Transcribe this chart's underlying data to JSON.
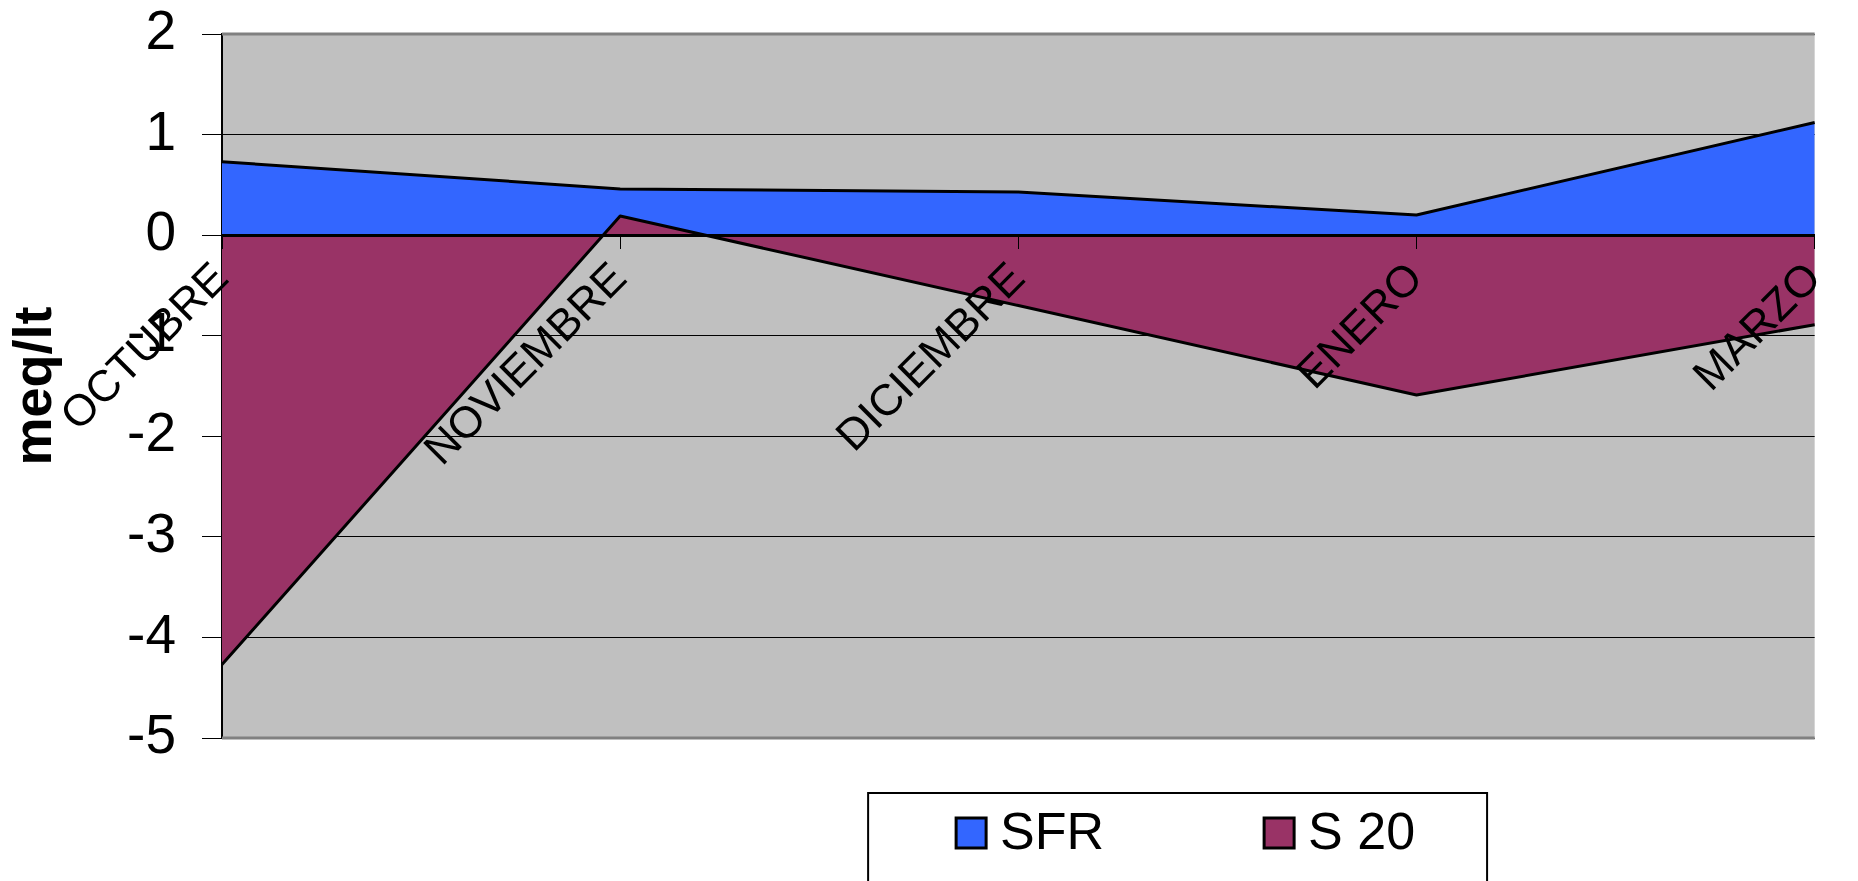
{
  "chart_data": {
    "type": "area",
    "ylabel": "meq/lt",
    "categories": [
      "OCTUBRE",
      "NOVIEMBRE",
      "DICIEMBRE",
      "ENERO",
      "MARZO"
    ],
    "series": [
      {
        "name": "SFR",
        "color": "#3366ff",
        "values": [
          0.73,
          0.46,
          0.43,
          0.2,
          1.12
        ]
      },
      {
        "name": "S 20",
        "color": "#993366",
        "values": [
          -4.27,
          0.19,
          -0.7,
          -1.59,
          -0.89
        ]
      }
    ],
    "ylim": [
      -5,
      2
    ],
    "yticks": [
      -5,
      -4,
      -3,
      -2,
      -1,
      0,
      1,
      2
    ],
    "grid": "y",
    "legend": "bottom"
  }
}
